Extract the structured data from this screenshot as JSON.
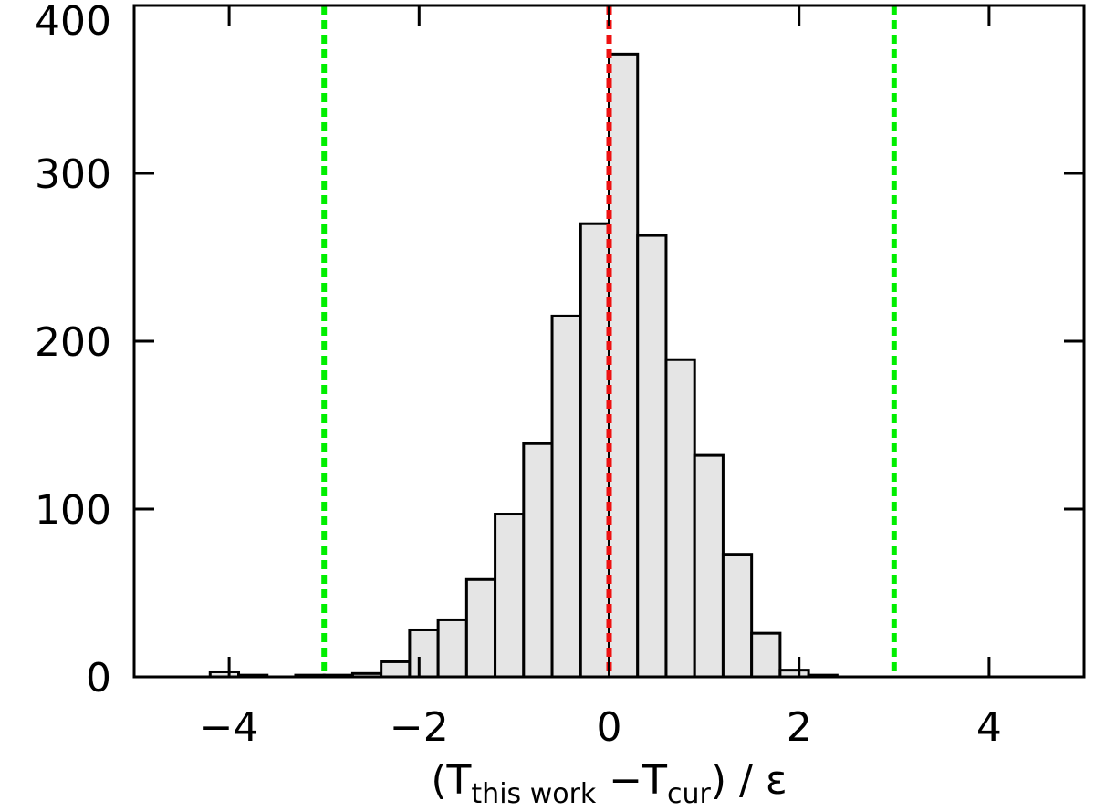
{
  "chart_data": {
    "type": "histogram",
    "bins": [
      -4.2,
      -3.9,
      -3.6,
      -3.3,
      -3.0,
      -2.7,
      -2.4,
      -2.1,
      -1.8,
      -1.5,
      -1.2,
      -0.9,
      -0.6,
      -0.3,
      0,
      0.3,
      0.6,
      0.9,
      1.2,
      1.5,
      1.8,
      2.1,
      2.4
    ],
    "values": [
      3,
      1,
      0,
      1,
      1,
      2,
      9,
      28,
      34,
      58,
      97,
      139,
      215,
      270,
      371,
      263,
      189,
      132,
      73,
      26,
      4,
      1
    ],
    "color": "#e5e5e5",
    "xlim": [
      -5,
      5
    ],
    "xticks": [
      {
        "value": -4,
        "label": "−4"
      },
      {
        "value": -2,
        "label": "−2"
      },
      0,
      2,
      4
    ],
    "ylim": [
      0,
      400
    ],
    "yticks": [
      0,
      100,
      200,
      300,
      400
    ],
    "vlines": [
      {
        "x": -3,
        "color": "#00ee00"
      },
      {
        "x": 0,
        "color": "#ee1111"
      },
      {
        "x": 3,
        "color": "#00ee00"
      }
    ],
    "xlabel": [
      {
        "text": "(T",
        "sub": false
      },
      {
        "text": "this work",
        "sub": true
      },
      {
        "text": " −T",
        "sub": false
      },
      {
        "text": "cur",
        "sub": true
      },
      {
        "text": ") / ε",
        "sub": false
      }
    ]
  }
}
